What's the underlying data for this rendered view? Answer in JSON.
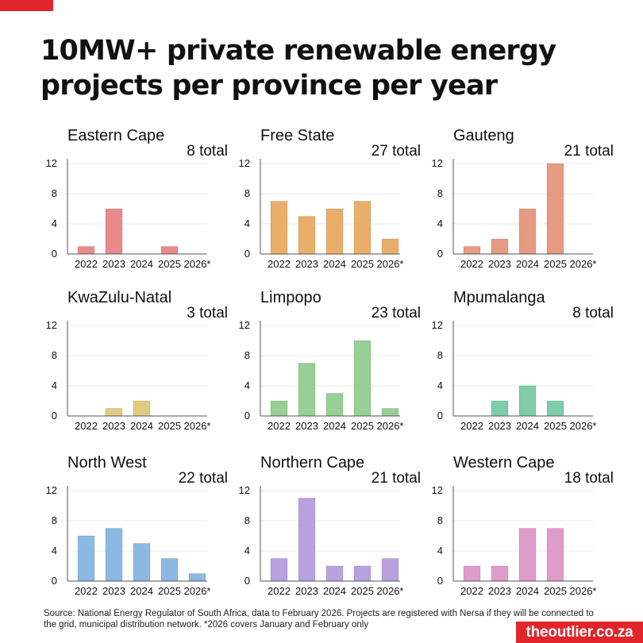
{
  "title": "10MW+ private renewable energy projects per province per year",
  "source": "Source: National Energy Regulator of South Africa, data to February 2026. Projects are registered with Nersa if they will be connected to the grid, municipal distribution network. *2026 covers January and February only",
  "brand": "theoutlier.co.za",
  "colors": {
    "accent": "#e1252b"
  },
  "chart_data": [
    {
      "type": "bar",
      "title": "Eastern Cape",
      "annotation": "8 total",
      "color": "#ea8a8b",
      "categories": [
        "2022",
        "2023",
        "2024",
        "2025",
        "2026*"
      ],
      "values": [
        1,
        6,
        0,
        1,
        0
      ],
      "ylim": [
        0,
        12
      ],
      "yticks": [
        0,
        4,
        8,
        12
      ]
    },
    {
      "type": "bar",
      "title": "Free State",
      "annotation": "27 total",
      "color": "#e9ae6a",
      "categories": [
        "2022",
        "2023",
        "2024",
        "2025",
        "2026*"
      ],
      "values": [
        7,
        5,
        6,
        7,
        2
      ],
      "ylim": [
        0,
        12
      ],
      "yticks": [
        0,
        4,
        8,
        12
      ]
    },
    {
      "type": "bar",
      "title": "Gauteng",
      "annotation": "21 total",
      "color": "#e79a82",
      "categories": [
        "2022",
        "2023",
        "2024",
        "2025",
        "2026*"
      ],
      "values": [
        1,
        2,
        6,
        12,
        0
      ],
      "ylim": [
        0,
        12
      ],
      "yticks": [
        0,
        4,
        8,
        12
      ]
    },
    {
      "type": "bar",
      "title": "KwaZulu-Natal",
      "annotation": "3 total",
      "color": "#e0cc80",
      "categories": [
        "2022",
        "2023",
        "2024",
        "2025",
        "2026*"
      ],
      "values": [
        0,
        1,
        2,
        0,
        0
      ],
      "ylim": [
        0,
        12
      ],
      "yticks": [
        0,
        4,
        8,
        12
      ]
    },
    {
      "type": "bar",
      "title": "Limpopo",
      "annotation": "23 total",
      "color": "#97cf94",
      "categories": [
        "2022",
        "2023",
        "2024",
        "2025",
        "2026*"
      ],
      "values": [
        2,
        7,
        3,
        10,
        1
      ],
      "ylim": [
        0,
        12
      ],
      "yticks": [
        0,
        4,
        8,
        12
      ]
    },
    {
      "type": "bar",
      "title": "Mpumalanga",
      "annotation": "8 total",
      "color": "#7fcbad",
      "categories": [
        "2022",
        "2023",
        "2024",
        "2025",
        "2026*"
      ],
      "values": [
        0,
        2,
        4,
        2,
        0
      ],
      "ylim": [
        0,
        12
      ],
      "yticks": [
        0,
        4,
        8,
        12
      ]
    },
    {
      "type": "bar",
      "title": "North West",
      "annotation": "22 total",
      "color": "#8cb9e3",
      "categories": [
        "2022",
        "2023",
        "2024",
        "2025",
        "2026*"
      ],
      "values": [
        6,
        7,
        5,
        3,
        1
      ],
      "ylim": [
        0,
        12
      ],
      "yticks": [
        0,
        4,
        8,
        12
      ]
    },
    {
      "type": "bar",
      "title": "Northern Cape",
      "annotation": "21 total",
      "color": "#b9a1e0",
      "categories": [
        "2022",
        "2023",
        "2024",
        "2025",
        "2026*"
      ],
      "values": [
        3,
        11,
        2,
        2,
        3
      ],
      "ylim": [
        0,
        12
      ],
      "yticks": [
        0,
        4,
        8,
        12
      ]
    },
    {
      "type": "bar",
      "title": "Western Cape",
      "annotation": "18 total",
      "color": "#de9ccb",
      "categories": [
        "2022",
        "2023",
        "2024",
        "2025",
        "2026*"
      ],
      "values": [
        2,
        2,
        7,
        7,
        0
      ],
      "ylim": [
        0,
        12
      ],
      "yticks": [
        0,
        4,
        8,
        12
      ]
    }
  ]
}
